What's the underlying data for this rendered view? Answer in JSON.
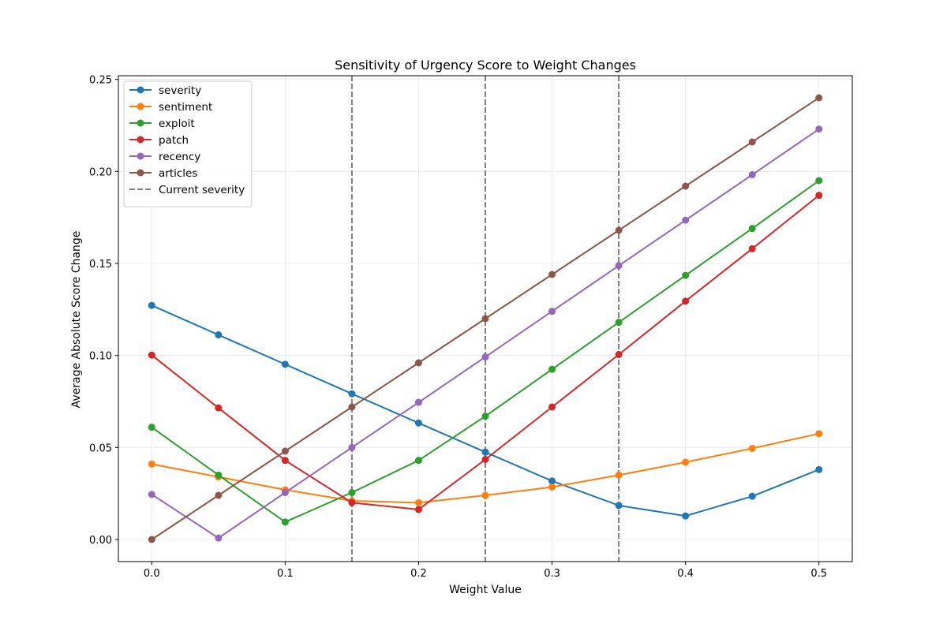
{
  "chart_data": {
    "type": "line",
    "title": "Sensitivity of Urgency Score to Weight Changes",
    "xlabel": "Weight Value",
    "ylabel": "Average Absolute Score Change",
    "xlim": [
      -0.025,
      0.525
    ],
    "ylim": [
      -0.012,
      0.252
    ],
    "xticks": [
      "0.0",
      "0.1",
      "0.2",
      "0.3",
      "0.4",
      "0.5"
    ],
    "xtick_values": [
      0.0,
      0.1,
      0.2,
      0.3,
      0.4,
      0.5
    ],
    "yticks": [
      "0.00",
      "0.05",
      "0.10",
      "0.15",
      "0.20",
      "0.25"
    ],
    "ytick_values": [
      0.0,
      0.05,
      0.1,
      0.15,
      0.2,
      0.25
    ],
    "grid": true,
    "legend_position": "top-left",
    "x": [
      0.0,
      0.05,
      0.1,
      0.15,
      0.2,
      0.25,
      0.3,
      0.35,
      0.4,
      0.45,
      0.5
    ],
    "series": [
      {
        "name": "severity",
        "color": "#1f77b4",
        "values": [
          0.1272,
          0.1112,
          0.0952,
          0.0792,
          0.0633,
          0.0475,
          0.0318,
          0.0185,
          0.0128,
          0.0235,
          0.038
        ]
      },
      {
        "name": "sentiment",
        "color": "#ff7f0e",
        "values": [
          0.041,
          0.034,
          0.027,
          0.021,
          0.02,
          0.024,
          0.0285,
          0.035,
          0.042,
          0.0495,
          0.0575
        ]
      },
      {
        "name": "exploit",
        "color": "#2ca02c",
        "values": [
          0.061,
          0.035,
          0.0095,
          0.0255,
          0.043,
          0.067,
          0.0925,
          0.118,
          0.1435,
          0.169,
          0.195
        ]
      },
      {
        "name": "patch",
        "color": "#d62728",
        "values": [
          0.1002,
          0.0715,
          0.043,
          0.02,
          0.0163,
          0.0435,
          0.072,
          0.1005,
          0.1295,
          0.158,
          0.187
        ]
      },
      {
        "name": "recency",
        "color": "#9467bd",
        "values": [
          0.0245,
          0.0008,
          0.0255,
          0.05,
          0.0745,
          0.0992,
          0.124,
          0.1488,
          0.1735,
          0.1982,
          0.223
        ]
      },
      {
        "name": "articles",
        "color": "#8c564b",
        "values": [
          0.0,
          0.024,
          0.048,
          0.072,
          0.096,
          0.12,
          0.144,
          0.168,
          0.192,
          0.216,
          0.24
        ]
      }
    ],
    "vlines": [
      {
        "name": "Current severity",
        "color": "#7f7f7f",
        "x": [
          0.15,
          0.25,
          0.35
        ]
      }
    ]
  }
}
